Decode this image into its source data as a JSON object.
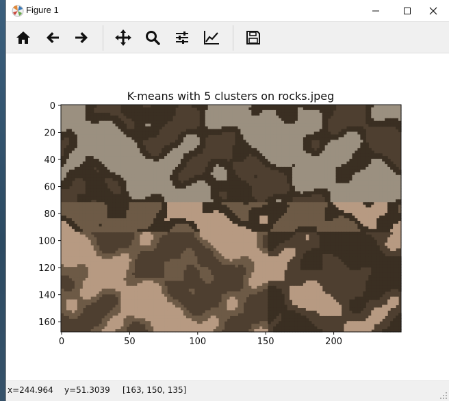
{
  "window": {
    "title": "Figure 1",
    "controls": [
      "minimize",
      "maximize",
      "close"
    ]
  },
  "toolbar": {
    "buttons": [
      {
        "name": "home-icon",
        "tooltip": "Reset original view"
      },
      {
        "name": "back-arrow-icon",
        "tooltip": "Back to previous view"
      },
      {
        "name": "forward-arrow-icon",
        "tooltip": "Forward to next view"
      },
      {
        "name": "pan-move-icon",
        "tooltip": "Pan axes"
      },
      {
        "name": "zoom-magnifier-icon",
        "tooltip": "Zoom to rectangle"
      },
      {
        "name": "subplots-sliders-icon",
        "tooltip": "Configure subplots"
      },
      {
        "name": "edit-axes-curve-icon",
        "tooltip": "Edit axis, curve and image parameters"
      },
      {
        "name": "save-floppy-icon",
        "tooltip": "Save the figure"
      }
    ]
  },
  "plot": {
    "title": "K-means with 5 clusters on rocks.jpeg",
    "x_ticks": [
      "0",
      "50",
      "100",
      "150",
      "200"
    ],
    "y_ticks": [
      "0",
      "20",
      "40",
      "60",
      "80",
      "100",
      "120",
      "140",
      "160"
    ]
  },
  "chart_data": {
    "type": "heatmap",
    "title": "K-means with 5 clusters on rocks.jpeg",
    "xlabel": "",
    "ylabel": "",
    "xlim": [
      0,
      249
    ],
    "ylim": [
      167,
      0
    ],
    "x_ticks": [
      0,
      50,
      100,
      150,
      200
    ],
    "y_ticks": [
      0,
      20,
      40,
      60,
      80,
      100,
      120,
      140,
      160
    ],
    "cluster_colors": [
      "#3a2f22",
      "#4e3f30",
      "#6d5a46",
      "#9b9080",
      "#b79a82"
    ]
  },
  "status": {
    "x": "x=244.964",
    "y": "y=51.3039",
    "rgb": "[163, 150, 135]"
  }
}
